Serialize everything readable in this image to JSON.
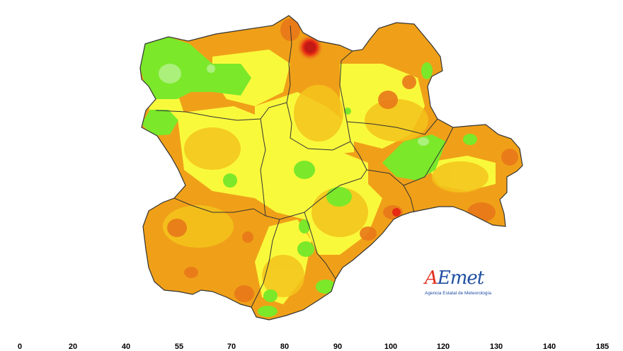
{
  "logo": {
    "word": "AEmet",
    "subtitle": "Agencia Estatal de Meteorología"
  },
  "scale": {
    "labels": [
      "0",
      "20",
      "40",
      "55",
      "70",
      "80",
      "90",
      "100",
      "120",
      "130",
      "140",
      "185"
    ]
  },
  "colors": {
    "light_green": "#aaf07a",
    "green": "#7be82a",
    "yellow": "#f9f93c",
    "yellow_orange": "#f4c41c",
    "orange": "#f0a018",
    "dark_orange": "#e8781a",
    "red": "#e62a14",
    "dark_red": "#c21a14",
    "border": "#333333"
  }
}
